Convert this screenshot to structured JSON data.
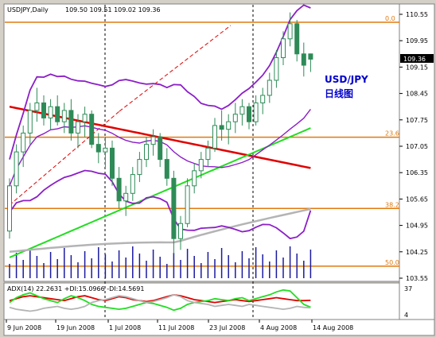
{
  "header": {
    "symbol_label": "USDJPY,Daily",
    "ohlc": "109.50 109.51 109.02 109.36"
  },
  "annotation": {
    "line1": "USD/JPY",
    "line2": "日线图"
  },
  "colors": {
    "chart_bg": "#ffffff",
    "frame": "#d4d0c8",
    "bollinger": "#8c1fc7",
    "ma_red": "#e00000",
    "ma_green": "#22dd22",
    "ma_gray": "#b4b4b4",
    "fib": "#e07a10",
    "candle": "#2e8b57",
    "volume": "#1a1aa0",
    "current_price_bg": "#000000",
    "annotation": "#0000cc"
  },
  "fib_levels": [
    {
      "label": "0.0",
      "price": 110.34
    },
    {
      "label": "23.6",
      "price": 107.29
    },
    {
      "label": "38.2",
      "price": 105.4
    },
    {
      "label": "50.0",
      "price": 103.87
    }
  ],
  "price_axis": {
    "ticks": [
      "110.55",
      "109.95",
      "109.15",
      "108.45",
      "107.75",
      "107.05",
      "106.35",
      "105.65",
      "104.95",
      "104.25",
      "103.55"
    ],
    "current_price": "109.36"
  },
  "indicator": {
    "label": "ADX(14) 22.2631 +DI:15.0966 -DI:14.5691",
    "axis_ticks": [
      "37",
      "4"
    ],
    "adx_color": "#e00000",
    "plus_di_color": "#22dd22",
    "minus_di_color": "#b4b4b4"
  },
  "time_axis": {
    "labels": [
      "9 Jun 2008",
      "19 Jun 2008",
      "1 Jul 2008",
      "11 Jul 2008",
      "23 Jul 2008",
      "4 Aug 2008",
      "14 Aug 2008"
    ]
  },
  "chart_data": {
    "type": "line",
    "title": "USDJPY,Daily",
    "ylim": [
      103.55,
      110.9
    ],
    "candles": [
      [
        104.8,
        106.2,
        104.6,
        106.0
      ],
      [
        106.0,
        107.1,
        105.8,
        106.9
      ],
      [
        106.9,
        107.6,
        106.5,
        107.4
      ],
      [
        107.4,
        108.2,
        107.1,
        108.0
      ],
      [
        108.0,
        108.6,
        107.7,
        108.2
      ],
      [
        108.2,
        108.4,
        107.6,
        107.8
      ],
      [
        107.8,
        108.3,
        107.5,
        108.1
      ],
      [
        108.1,
        108.4,
        107.6,
        107.7
      ],
      [
        107.7,
        108.2,
        107.4,
        108.0
      ],
      [
        108.0,
        108.3,
        107.2,
        107.4
      ],
      [
        107.4,
        107.9,
        107.0,
        107.7
      ],
      [
        107.7,
        108.1,
        107.3,
        107.9
      ],
      [
        107.9,
        108.0,
        107.0,
        107.1
      ],
      [
        107.1,
        107.4,
        106.6,
        106.9
      ],
      [
        106.9,
        107.3,
        106.5,
        107.0
      ],
      [
        107.0,
        107.2,
        106.0,
        106.2
      ],
      [
        106.2,
        106.5,
        105.4,
        105.6
      ],
      [
        105.6,
        106.0,
        105.2,
        105.8
      ],
      [
        105.8,
        106.5,
        105.6,
        106.3
      ],
      [
        106.3,
        106.9,
        106.1,
        106.7
      ],
      [
        106.7,
        107.3,
        106.5,
        107.1
      ],
      [
        107.1,
        107.5,
        106.8,
        107.3
      ],
      [
        107.3,
        107.4,
        106.5,
        106.7
      ],
      [
        106.7,
        107.0,
        106.0,
        106.2
      ],
      [
        106.2,
        106.4,
        104.2,
        104.6
      ],
      [
        104.6,
        105.2,
        104.3,
        105.0
      ],
      [
        105.0,
        106.2,
        104.9,
        106.0
      ],
      [
        106.0,
        106.6,
        105.8,
        106.4
      ],
      [
        106.4,
        106.9,
        106.2,
        106.7
      ],
      [
        106.7,
        107.2,
        106.5,
        107.0
      ],
      [
        107.0,
        107.8,
        106.9,
        107.6
      ],
      [
        107.6,
        108.0,
        107.2,
        107.5
      ],
      [
        107.5,
        107.9,
        107.1,
        107.7
      ],
      [
        107.7,
        108.2,
        107.4,
        107.9
      ],
      [
        107.9,
        108.3,
        107.6,
        108.1
      ],
      [
        108.1,
        108.2,
        107.5,
        107.7
      ],
      [
        107.7,
        108.4,
        107.6,
        108.2
      ],
      [
        108.2,
        108.6,
        107.9,
        108.4
      ],
      [
        108.4,
        109.0,
        108.2,
        108.8
      ],
      [
        108.8,
        109.6,
        108.6,
        109.4
      ],
      [
        109.4,
        110.1,
        109.2,
        109.9
      ],
      [
        109.9,
        110.6,
        109.7,
        110.3
      ],
      [
        110.3,
        110.4,
        109.3,
        109.5
      ],
      [
        109.5,
        109.8,
        108.9,
        109.2
      ],
      [
        109.5,
        109.51,
        109.02,
        109.36
      ]
    ],
    "series": [
      {
        "name": "ADX(14)",
        "values": [
          22,
          24,
          26,
          27,
          26,
          25,
          24,
          23,
          22,
          24,
          26,
          27,
          25,
          23,
          22,
          24,
          26,
          25,
          23,
          22,
          21,
          22,
          24,
          26,
          28,
          27,
          25,
          23,
          22,
          21,
          20,
          21,
          22,
          23,
          22,
          21,
          22,
          23,
          24,
          25,
          24,
          23,
          22,
          22,
          22.2631
        ]
      },
      {
        "name": "+DI",
        "values": [
          20,
          25,
          28,
          30,
          27,
          24,
          22,
          20,
          24,
          27,
          25,
          22,
          18,
          16,
          15,
          14,
          13,
          14,
          16,
          18,
          20,
          19,
          17,
          15,
          12,
          14,
          18,
          20,
          21,
          22,
          24,
          23,
          22,
          24,
          25,
          22,
          24,
          26,
          28,
          31,
          33,
          32,
          25,
          18,
          15.0966
        ]
      },
      {
        "name": "-DI",
        "values": [
          15,
          13,
          12,
          11,
          12,
          14,
          15,
          16,
          14,
          13,
          14,
          16,
          20,
          22,
          23,
          25,
          27,
          26,
          24,
          22,
          20,
          21,
          23,
          25,
          28,
          26,
          22,
          20,
          19,
          18,
          16,
          17,
          18,
          17,
          16,
          18,
          17,
          16,
          15,
          14,
          13,
          14,
          16,
          15,
          14.5691
        ]
      }
    ]
  }
}
